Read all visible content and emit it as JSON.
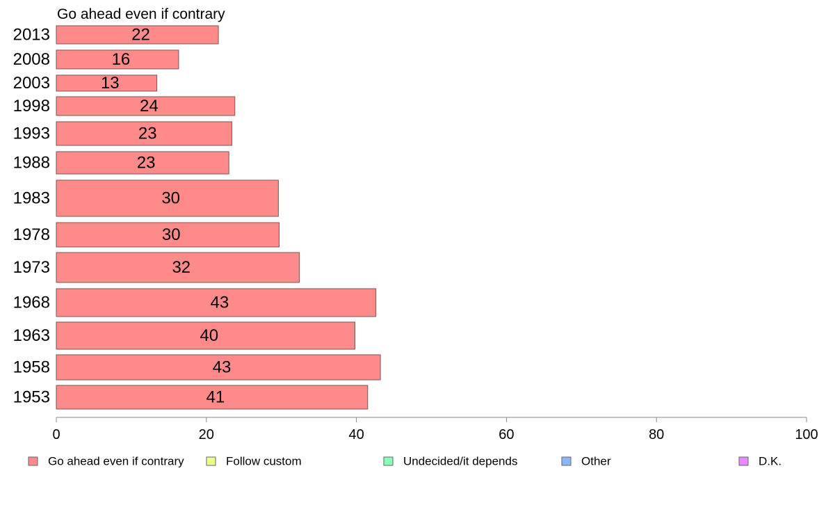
{
  "chart_data": {
    "type": "bar",
    "orientation": "horizontal",
    "panel_title": "Go ahead even if contrary",
    "categories": [
      "2013",
      "2008",
      "2003",
      "1998",
      "1993",
      "1988",
      "1983",
      "1978",
      "1973",
      "1968",
      "1963",
      "1958",
      "1953"
    ],
    "values": [
      22,
      16,
      13,
      24,
      23,
      23,
      30,
      30,
      32,
      43,
      40,
      43,
      41
    ],
    "value_labels": [
      "22",
      "16",
      "13",
      "24",
      "23",
      "23",
      "30",
      "30",
      "32",
      "43",
      "40",
      "43",
      "41"
    ],
    "precise_values": [
      21.6,
      16.3,
      13.4,
      23.8,
      23.4,
      23.0,
      29.6,
      29.7,
      32.4,
      42.6,
      39.8,
      43.2,
      41.5
    ],
    "xlim": [
      0,
      100
    ],
    "x_ticks": [
      "0",
      "20",
      "40",
      "60",
      "80",
      "100"
    ],
    "grid": false,
    "bar_color": "#ff8a8a",
    "bar_border_color": "#7a5555",
    "axis_color": "#888888",
    "legend": {
      "placement": "bottom",
      "items": [
        {
          "label": "Go ahead even if contrary",
          "color": "#ff8a8a"
        },
        {
          "label": "Follow custom",
          "color": "#ecff8a"
        },
        {
          "label": "Undecided/it depends",
          "color": "#8affb8"
        },
        {
          "label": "Other",
          "color": "#8ab8ff"
        },
        {
          "label": "D.K.",
          "color": "#e88aff"
        }
      ]
    }
  }
}
